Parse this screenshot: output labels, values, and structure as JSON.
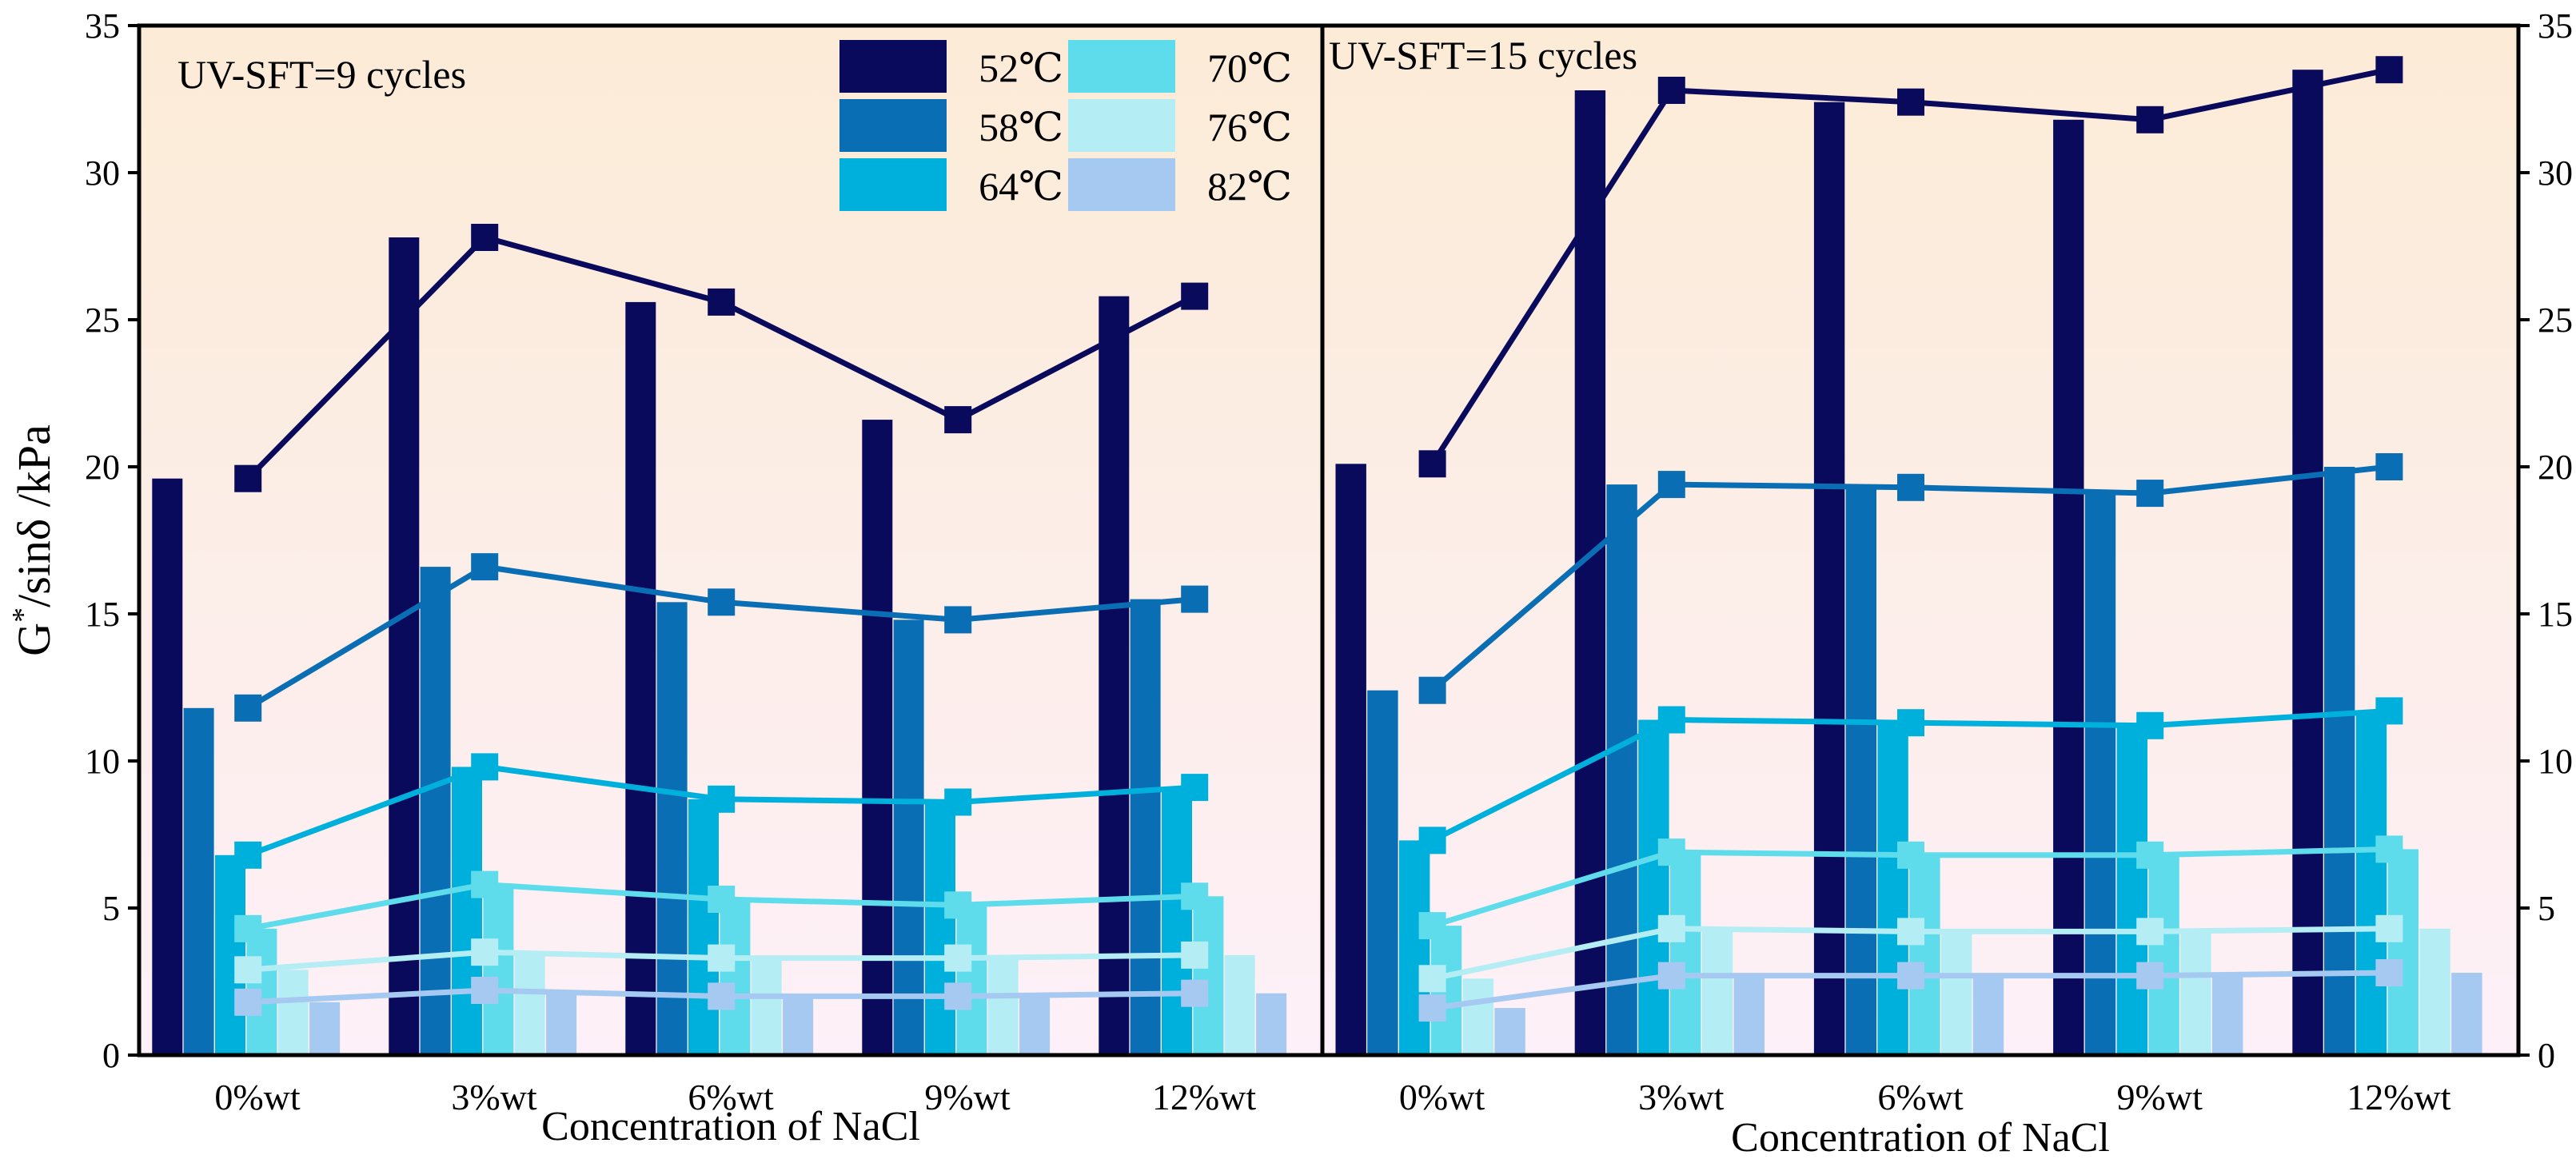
{
  "chart_data": [
    {
      "type": "bar",
      "title": "UV-SFT=9 cycles",
      "xlabel": "Concentration of NaCl",
      "ylabel": "G*/sinδ /kPa",
      "ylim": [
        0,
        35
      ],
      "yticks": [
        0,
        5,
        10,
        15,
        20,
        25,
        30,
        35
      ],
      "categories": [
        "0%wt",
        "3%wt",
        "6%wt",
        "9%wt",
        "12%wt"
      ],
      "overlay": "line with square markers per series",
      "series": [
        {
          "name": "52℃",
          "color": "#0a0a5c",
          "values": [
            19.6,
            27.8,
            25.6,
            21.6,
            25.8
          ]
        },
        {
          "name": "58℃",
          "color": "#0a6eb4",
          "values": [
            11.8,
            16.6,
            15.4,
            14.8,
            15.5
          ]
        },
        {
          "name": "64℃",
          "color": "#00b0dc",
          "values": [
            6.8,
            9.8,
            8.7,
            8.6,
            9.1
          ]
        },
        {
          "name": "70℃",
          "color": "#5fdcec",
          "values": [
            4.3,
            5.8,
            5.3,
            5.1,
            5.4
          ]
        },
        {
          "name": "76℃",
          "color": "#b5edf5",
          "values": [
            2.9,
            3.5,
            3.3,
            3.3,
            3.4
          ]
        },
        {
          "name": "82℃",
          "color": "#a6c9f2",
          "values": [
            1.8,
            2.2,
            2.0,
            2.0,
            2.1
          ]
        }
      ]
    },
    {
      "type": "bar",
      "title": "UV-SFT=15 cycles",
      "xlabel": "Concentration of NaCl",
      "ylabel": "",
      "ylim": [
        0,
        35
      ],
      "yticks": [
        0,
        5,
        10,
        15,
        20,
        25,
        30,
        35
      ],
      "categories": [
        "0%wt",
        "3%wt",
        "6%wt",
        "9%wt",
        "12%wt"
      ],
      "overlay": "line with square markers per series",
      "series": [
        {
          "name": "52℃",
          "color": "#0a0a5c",
          "values": [
            20.1,
            32.8,
            32.4,
            31.8,
            33.5
          ]
        },
        {
          "name": "58℃",
          "color": "#0a6eb4",
          "values": [
            12.4,
            19.4,
            19.3,
            19.1,
            20.0
          ]
        },
        {
          "name": "64℃",
          "color": "#00b0dc",
          "values": [
            7.3,
            11.4,
            11.3,
            11.2,
            11.7
          ]
        },
        {
          "name": "70℃",
          "color": "#5fdcec",
          "values": [
            4.4,
            6.9,
            6.8,
            6.8,
            7.0
          ]
        },
        {
          "name": "76℃",
          "color": "#b5edf5",
          "values": [
            2.6,
            4.3,
            4.2,
            4.2,
            4.3
          ]
        },
        {
          "name": "82℃",
          "color": "#a6c9f2",
          "values": [
            1.6,
            2.7,
            2.7,
            2.7,
            2.8
          ]
        }
      ]
    }
  ],
  "legend": {
    "items": [
      {
        "label": "52℃",
        "color": "#0a0a5c"
      },
      {
        "label": "70℃",
        "color": "#5fdcec"
      },
      {
        "label": "58℃",
        "color": "#0a6eb4"
      },
      {
        "label": "76℃",
        "color": "#b5edf5"
      },
      {
        "label": "64℃",
        "color": "#00b0dc"
      },
      {
        "label": "82℃",
        "color": "#a6c9f2"
      }
    ]
  },
  "background": {
    "top_color": "#fcebd6",
    "bottom_color": "#fdf0f8"
  }
}
